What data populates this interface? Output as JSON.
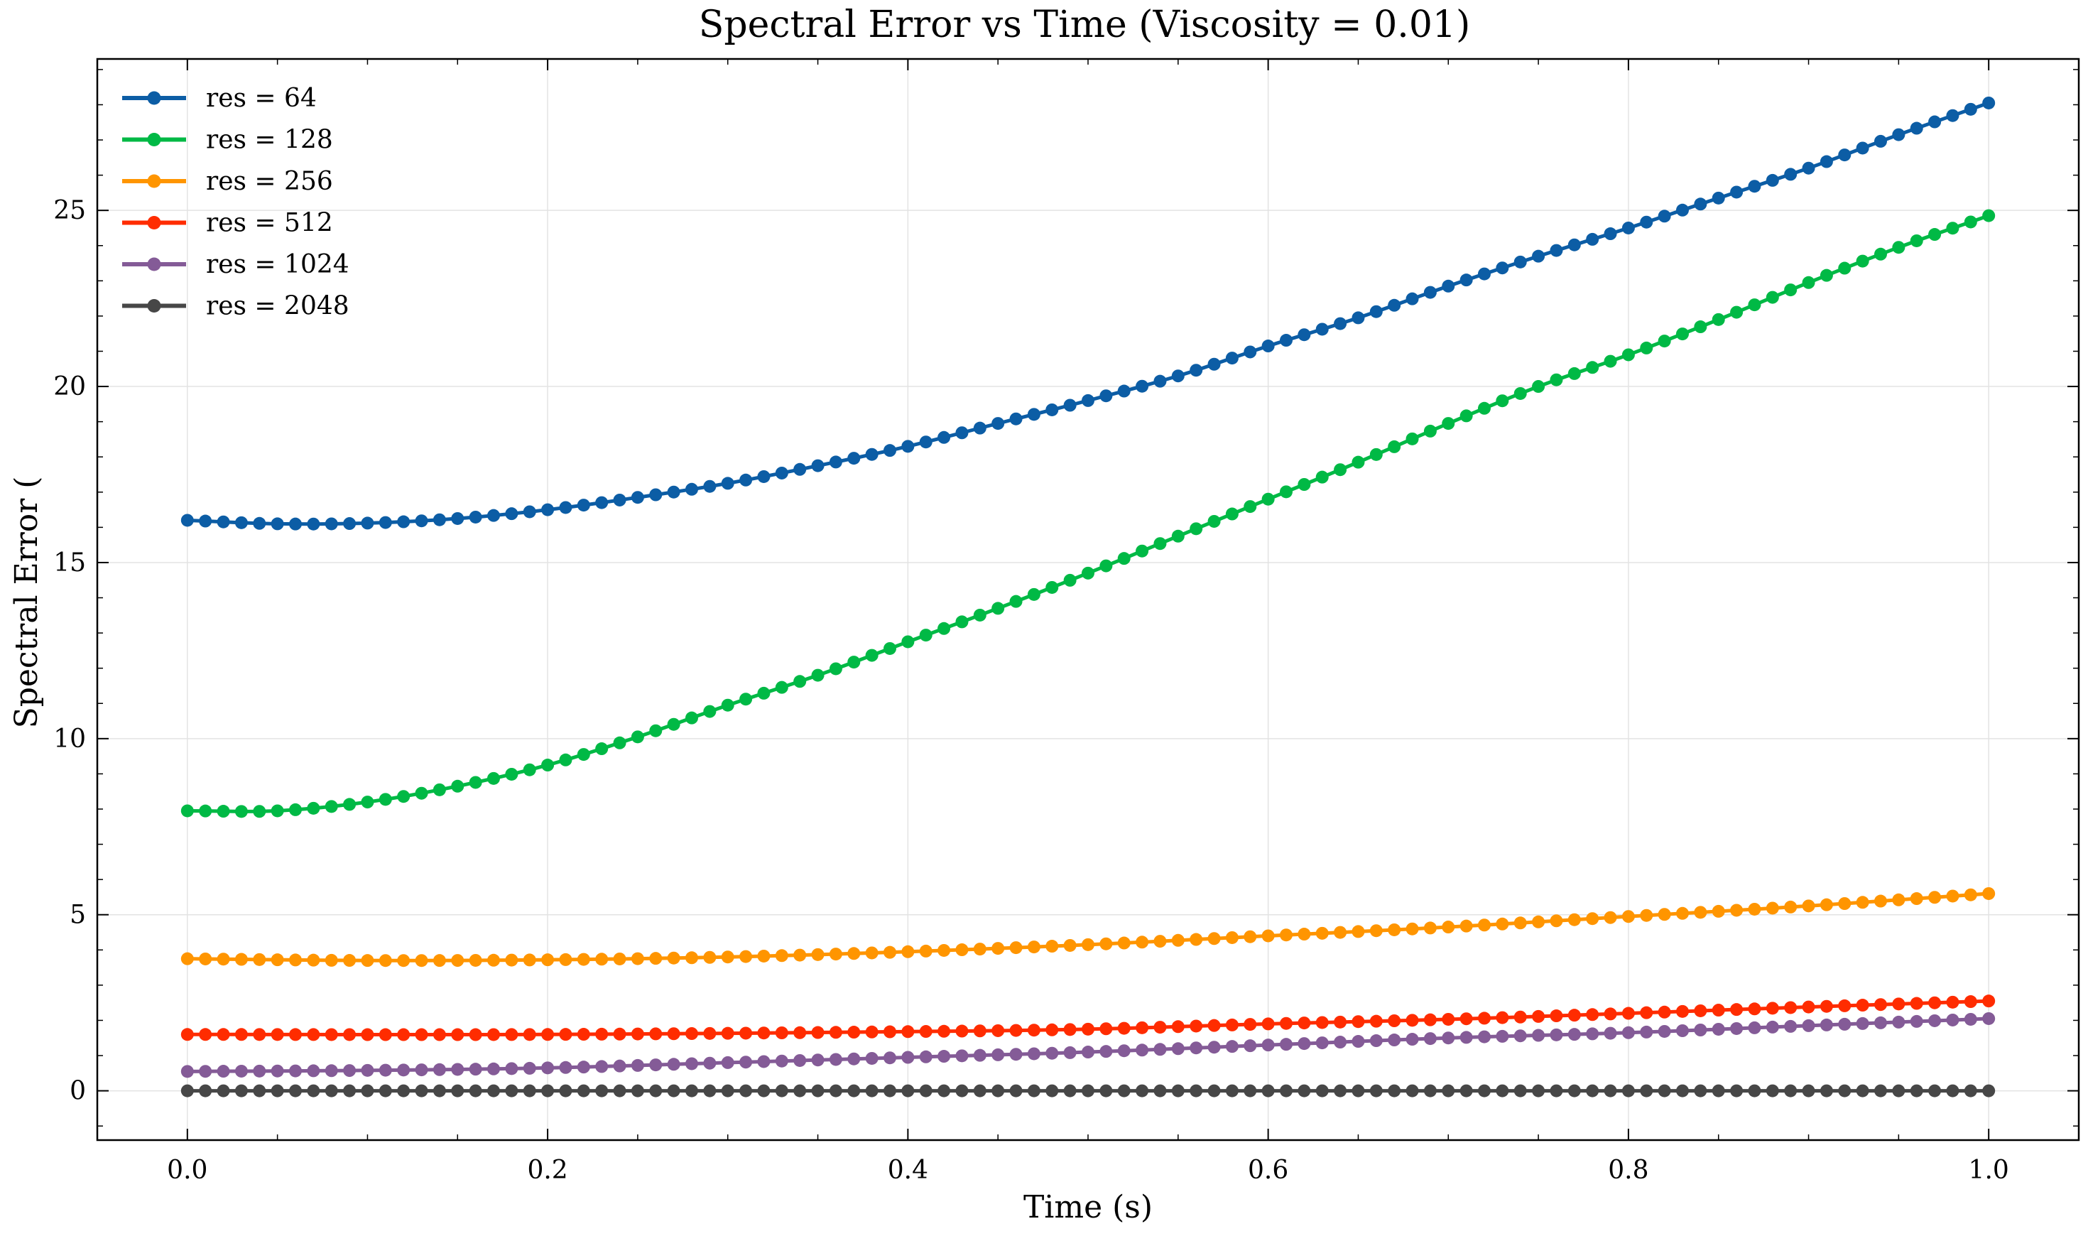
{
  "chart_data": {
    "type": "line",
    "title": "Spectral Error vs Time (Viscosity = 0.01)",
    "xlabel": "Time (s)",
    "ylabel": "Spectral Error (",
    "xlim": [
      -0.05,
      1.05
    ],
    "ylim": [
      -1.4,
      29.3
    ],
    "xticks": [
      0.0,
      0.2,
      0.4,
      0.6,
      0.8,
      1.0
    ],
    "xtick_labels": [
      "0.0",
      "0.2",
      "0.4",
      "0.6",
      "0.8",
      "1.0"
    ],
    "yticks": [
      0,
      5,
      10,
      15,
      20,
      25
    ],
    "ytick_labels": [
      "0",
      "5",
      "10",
      "15",
      "20",
      "25"
    ],
    "grid": true,
    "legend_position": "top-left",
    "n_points": 101,
    "series": [
      {
        "name": "res = 64",
        "label": "res = 64",
        "color": "#0C5DA5",
        "knots": [
          [
            0,
            16.2
          ],
          [
            0.05,
            16.1
          ],
          [
            0.1,
            16.12
          ],
          [
            0.15,
            16.25
          ],
          [
            0.2,
            16.5
          ],
          [
            0.25,
            16.85
          ],
          [
            0.3,
            17.25
          ],
          [
            0.35,
            17.75
          ],
          [
            0.4,
            18.3
          ],
          [
            0.45,
            18.95
          ],
          [
            0.5,
            19.6
          ],
          [
            0.55,
            20.3
          ],
          [
            0.6,
            21.15
          ],
          [
            0.65,
            21.95
          ],
          [
            0.7,
            22.85
          ],
          [
            0.75,
            23.7
          ],
          [
            0.8,
            24.5
          ],
          [
            0.85,
            25.35
          ],
          [
            0.9,
            26.2
          ],
          [
            0.95,
            27.15
          ],
          [
            1.0,
            28.05
          ]
        ]
      },
      {
        "name": "res = 128",
        "label": "res = 128",
        "color": "#00B945",
        "knots": [
          [
            0,
            7.95
          ],
          [
            0.05,
            7.95
          ],
          [
            0.1,
            8.2
          ],
          [
            0.15,
            8.65
          ],
          [
            0.2,
            9.25
          ],
          [
            0.25,
            10.05
          ],
          [
            0.3,
            10.95
          ],
          [
            0.35,
            11.8
          ],
          [
            0.4,
            12.75
          ],
          [
            0.45,
            13.7
          ],
          [
            0.5,
            14.7
          ],
          [
            0.55,
            15.75
          ],
          [
            0.6,
            16.8
          ],
          [
            0.65,
            17.85
          ],
          [
            0.7,
            18.95
          ],
          [
            0.75,
            20.0
          ],
          [
            0.8,
            20.9
          ],
          [
            0.85,
            21.9
          ],
          [
            0.9,
            22.95
          ],
          [
            0.95,
            23.95
          ],
          [
            1.0,
            24.85
          ]
        ]
      },
      {
        "name": "res = 256",
        "label": "res = 256",
        "color": "#FF9500",
        "knots": [
          [
            0,
            3.75
          ],
          [
            0.1,
            3.7
          ],
          [
            0.2,
            3.72
          ],
          [
            0.3,
            3.8
          ],
          [
            0.4,
            3.95
          ],
          [
            0.5,
            4.15
          ],
          [
            0.6,
            4.4
          ],
          [
            0.7,
            4.65
          ],
          [
            0.8,
            4.95
          ],
          [
            0.9,
            5.25
          ],
          [
            1.0,
            5.6
          ]
        ]
      },
      {
        "name": "res = 512",
        "label": "res = 512",
        "color": "#FF2C00",
        "knots": [
          [
            0,
            1.6
          ],
          [
            0.2,
            1.6
          ],
          [
            0.4,
            1.68
          ],
          [
            0.5,
            1.75
          ],
          [
            0.6,
            1.9
          ],
          [
            0.7,
            2.03
          ],
          [
            0.8,
            2.2
          ],
          [
            0.9,
            2.38
          ],
          [
            1.0,
            2.55
          ]
        ]
      },
      {
        "name": "res = 1024",
        "label": "res = 1024",
        "color": "#845B97",
        "knots": [
          [
            0,
            0.55
          ],
          [
            0.1,
            0.58
          ],
          [
            0.2,
            0.65
          ],
          [
            0.3,
            0.8
          ],
          [
            0.4,
            0.95
          ],
          [
            0.5,
            1.1
          ],
          [
            0.6,
            1.3
          ],
          [
            0.7,
            1.5
          ],
          [
            0.8,
            1.65
          ],
          [
            0.9,
            1.85
          ],
          [
            1.0,
            2.05
          ]
        ]
      },
      {
        "name": "res = 2048",
        "label": "res = 2048",
        "color": "#474747",
        "knots": [
          [
            0,
            0.0
          ],
          [
            1.0,
            0.0
          ]
        ]
      }
    ]
  }
}
